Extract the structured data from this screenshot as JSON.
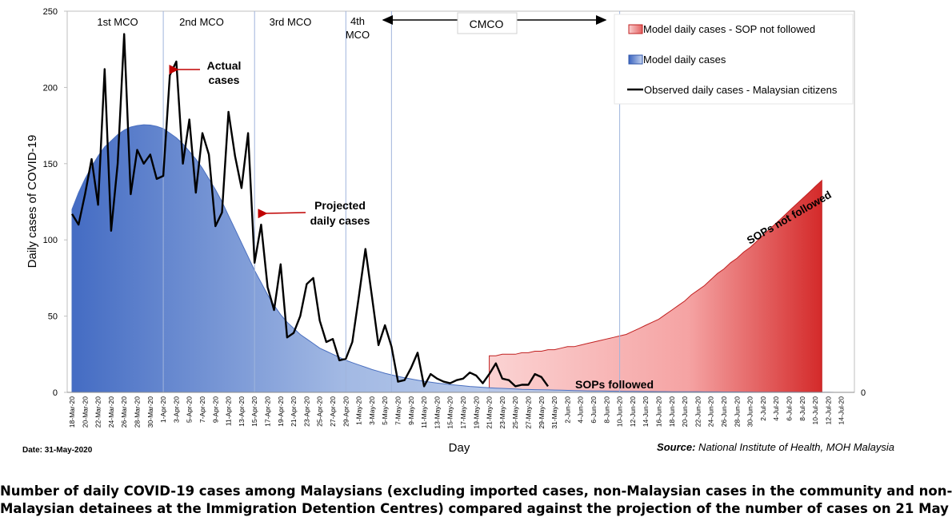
{
  "chart_data": {
    "type": "area",
    "ylabel": "Daily cases of COVID-19",
    "xlabel": "Day",
    "ylim": [
      0,
      250
    ],
    "yticks": [
      0,
      50,
      100,
      150,
      200,
      250
    ],
    "secondary_ytick": "0",
    "x_tick_labels": [
      "18-Mar-20",
      "20-Mar-20",
      "22-Mar-20",
      "24-Mar-20",
      "26-Mar-20",
      "28-Mar-20",
      "30-Mar-20",
      "1-Apr-20",
      "3-Apr-20",
      "5-Apr-20",
      "7-Apr-20",
      "9-Apr-20",
      "11-Apr-20",
      "13-Apr-20",
      "15-Apr-20",
      "17-Apr-20",
      "19-Apr-20",
      "21-Apr-20",
      "23-Apr-20",
      "25-Apr-20",
      "27-Apr-20",
      "29-Apr-20",
      "1-May-20",
      "3-May-20",
      "5-May-20",
      "7-May-20",
      "9-May-20",
      "11-May-20",
      "13-May-20",
      "15-May-20",
      "17-May-20",
      "19-May-20",
      "21-May-20",
      "23-May-20",
      "25-May-20",
      "27-May-20",
      "29-May-20",
      "31-May-20",
      "2-Jun-20",
      "4-Jun-20",
      "6-Jun-20",
      "8-Jun-20",
      "10-Jun-20",
      "12-Jun-20",
      "14-Jun-20",
      "16-Jun-20",
      "18-Jun-20",
      "20-Jun-20",
      "22-Jun-20",
      "24-Jun-20",
      "26-Jun-20",
      "28-Jun-20",
      "30-Jun-20",
      "2-Jul-20",
      "4-Jul-20",
      "6-Jul-20",
      "8-Jul-20",
      "10-Jul-20",
      "12-Jul-20",
      "14-Jul-20"
    ],
    "series": [
      {
        "name": "Model daily cases - SOP not followed",
        "color": "#e04040",
        "start_index": 64,
        "values": [
          24,
          24,
          25,
          25,
          25,
          26,
          26,
          27,
          27,
          28,
          28,
          29,
          30,
          30,
          31,
          32,
          33,
          34,
          35,
          36,
          37,
          38,
          40,
          42,
          44,
          46,
          48,
          51,
          54,
          57,
          60,
          64,
          67,
          70,
          74,
          78,
          81,
          85,
          88,
          92,
          95,
          99,
          103,
          107,
          111,
          115,
          119,
          123,
          127,
          131,
          135,
          139
        ]
      },
      {
        "name": "Model daily cases",
        "color": "#4a72c4",
        "start_index": 0,
        "values": [
          120,
          131,
          140,
          148,
          155,
          161,
          165,
          169,
          172,
          174,
          175,
          175.5,
          175.3,
          174.5,
          173,
          170,
          167,
          163,
          158,
          153,
          147,
          140,
          133,
          125,
          116,
          107,
          98,
          89,
          80,
          72,
          64,
          57,
          51,
          46,
          42,
          38,
          35,
          32,
          29,
          27,
          25,
          23,
          21,
          19.5,
          18,
          16.5,
          15,
          13.8,
          12.5,
          11.5,
          10.5,
          9.6,
          8.8,
          8,
          7.3,
          6.7,
          6.1,
          5.6,
          5.1,
          4.7,
          4.3,
          3.9,
          3.6,
          3.3,
          3,
          2.8,
          2.6,
          2.4,
          2.2,
          2,
          1.9,
          1.8,
          1.7,
          1.6,
          1.5,
          1.4,
          1.3,
          1.2,
          1.1,
          1,
          0.95,
          0.9,
          0.85,
          0.8,
          0.75,
          0.7,
          0.65,
          0.6,
          0.55,
          0.5,
          0.48,
          0.46,
          0.44,
          0.42,
          0.4,
          0.38,
          0.36,
          0.34,
          0.32,
          0.3,
          0.28,
          0.26,
          0.24,
          0.22,
          0.2,
          0.18,
          0.16,
          0.14,
          0.12,
          0.1,
          0.09,
          0.08,
          0.07,
          0.06,
          0.05,
          0.04,
          0.03,
          0.02,
          0.01
        ]
      },
      {
        "name": "Observed daily cases - Malaysian citizens",
        "color": "#000000",
        "start_index": 0,
        "values": [
          117,
          110,
          130,
          153,
          123,
          212,
          106,
          150,
          235,
          130,
          159,
          150,
          156,
          140,
          142,
          208,
          217,
          150,
          179,
          131,
          170,
          156,
          109,
          118,
          184,
          155,
          134,
          170,
          85,
          110,
          69,
          54,
          84,
          36,
          39,
          50,
          71,
          75,
          47,
          33,
          35,
          21,
          22,
          33,
          63,
          94,
          63,
          31,
          44,
          30,
          7,
          8,
          16,
          26,
          4,
          12,
          9,
          7,
          6,
          8,
          9,
          13,
          11,
          6,
          12,
          19,
          9,
          8,
          4,
          5,
          5,
          12,
          10,
          4
        ]
      }
    ],
    "phases": [
      {
        "label": "1st MCO",
        "start_index": 0,
        "end_index": 14
      },
      {
        "label": "2nd MCO",
        "start_index": 14,
        "end_index": 28
      },
      {
        "label": "3rd MCO",
        "start_index": 28,
        "end_index": 42
      },
      {
        "label": "4th MCO",
        "start_index": 42,
        "end_index": 49
      },
      {
        "label": "CMCO",
        "start_index": 49,
        "end_index": 84
      }
    ],
    "phase_boundaries": [
      14,
      28,
      42,
      49,
      84
    ],
    "annotations": [
      {
        "label": "Actual cases",
        "points_to_index": 17
      },
      {
        "label": "Projected daily cases",
        "points_to_index": 31
      },
      {
        "label": "SOPs followed",
        "points_to_index": 91
      },
      {
        "label": "SOPs not followed",
        "points_to_index": 108
      }
    ],
    "legend_position": "top-right"
  },
  "labels": {
    "phase1": "1st MCO",
    "phase2": "2nd MCO",
    "phase3": "3rd MCO",
    "phase4_line1": "4th",
    "phase4_line2": "MCO",
    "cmco": "CMCO",
    "actual_line1": "Actual",
    "actual_line2": "cases",
    "projected_line1": "Projected",
    "projected_line2": "daily cases",
    "sops_followed": "SOPs followed",
    "sops_not_followed": "SOPs not followed",
    "date": "Date: 31-May-2020",
    "source_prefix": "Source:",
    "source_text": " National Institute of Health, MOH Malaysia",
    "caption_line1": "Number of daily COVID-19 cases among Malaysians (excluding imported cases, non-Malaysian cases in the community and non-",
    "caption_line2": "Malaysian detainees at the Immigration Detention Centres) compared against the projection of the number of cases on 21 May"
  }
}
